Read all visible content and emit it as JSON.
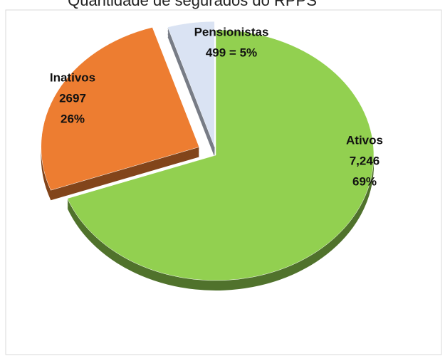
{
  "chart_data": {
    "type": "pie",
    "title": "Quantidade de segurados do RPPS",
    "categories": [
      "Ativos",
      "Inativos",
      "Pensionistas"
    ],
    "values": [
      7246,
      2697,
      499
    ],
    "value_labels": [
      "7,246",
      "2697",
      "499 = 5%"
    ],
    "percent_labels": [
      "69%",
      "26%",
      null
    ],
    "colors": [
      "#92d050",
      "#ed7d31",
      "#dae3f3"
    ]
  }
}
